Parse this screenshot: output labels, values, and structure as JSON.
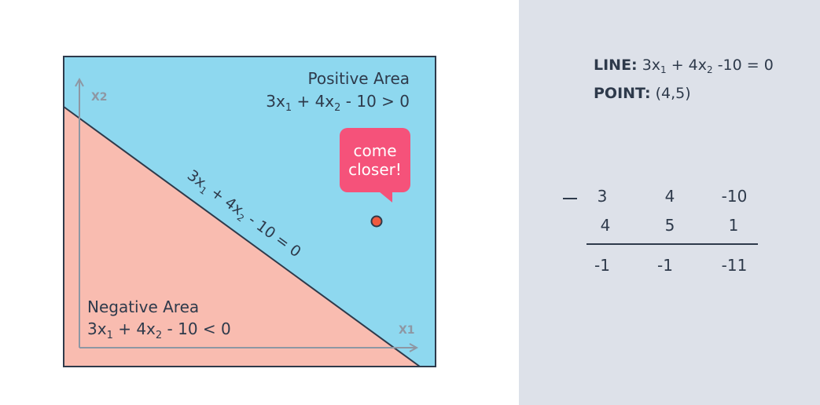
{
  "diagram": {
    "axis_x_label": "X1",
    "axis_y_label": "X2",
    "positive_area": {
      "title": "Positive Area",
      "eq_a": "3x",
      "sub_a": "1",
      "eq_b": " + 4x",
      "sub_b": "2",
      "eq_c": " - 10 > 0"
    },
    "negative_area": {
      "title": "Negative Area",
      "eq_a": "3x",
      "sub_a": "1",
      "eq_b": " + 4x",
      "sub_b": "2",
      "eq_c": " - 10 < 0"
    },
    "line_equation": {
      "eq_a": "3x",
      "sub_a": "1",
      "eq_b": " + 4x",
      "sub_b": "2",
      "eq_c": " - 10 = 0"
    },
    "bubble_line1": "come",
    "bubble_line2": "closer!",
    "colors": {
      "positive_region": "#8ed8ef",
      "negative_region": "#f9bcb0",
      "point": "#ef5a3f",
      "bubble": "#f5527a",
      "border": "#2e3a4b"
    }
  },
  "panel": {
    "line_label": "LINE:",
    "line_eq_a": " 3x",
    "line_sub_a": "1",
    "line_eq_b": " + 4x",
    "line_sub_b": "2",
    "line_eq_c": " -10 = 0",
    "point_label": "POINT:",
    "point_value": " (4,5)",
    "row1": [
      "3",
      "4",
      "-10"
    ],
    "row2": [
      "4",
      "5",
      "1"
    ],
    "result": [
      "-1",
      "-1",
      "-11"
    ]
  }
}
